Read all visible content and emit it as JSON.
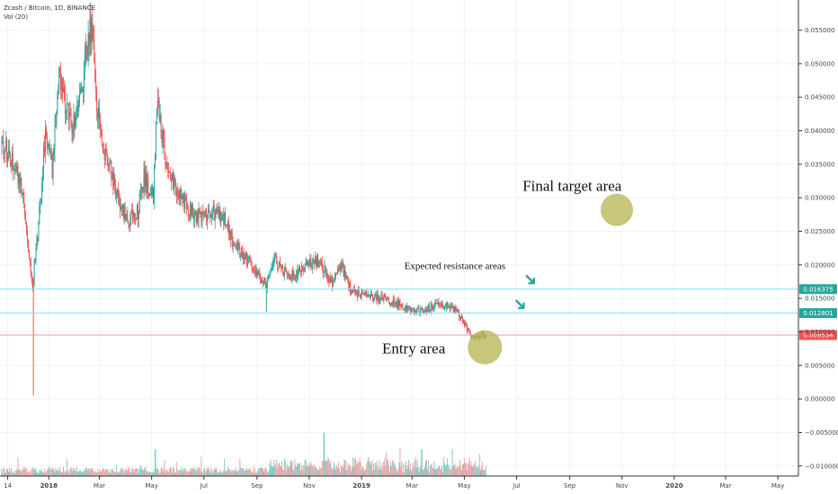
{
  "header": {
    "title": "Zcash / Bitcoin, 1D, BINANCE",
    "volume_label": "Vol (20)"
  },
  "colors": {
    "up": "#26a69a",
    "down": "#ef5350",
    "up_vol": "#80cbc4",
    "down_vol": "#f7a4a2",
    "resistance_line": "#80deea",
    "entry_line": "#ef9a9a",
    "circle": "#b5b34e",
    "arrow": "#26a69a",
    "grid": "#f0f3fa",
    "axis": "#333333"
  },
  "chart_data": {
    "type": "candlestick",
    "title": "Zcash / Bitcoin, 1D, BINANCE",
    "symbol": "Zcash / Bitcoin",
    "interval": "1D",
    "exchange": "BINANCE",
    "ylim": [
      -0.0115,
      0.0595
    ],
    "y_ticks": [
      -0.01,
      -0.005,
      0.0,
      0.005,
      0.01,
      0.015,
      0.02,
      0.025,
      0.03,
      0.035,
      0.04,
      0.045,
      0.05,
      0.055
    ],
    "y_tick_labels": [
      "−0.010000",
      "−0.005000",
      "0.000000",
      "0.005000",
      "0.010000",
      "0.015000",
      "0.020000",
      "0.025000",
      "0.030000",
      "0.035000",
      "0.040000",
      "0.045000",
      "0.050000",
      "0.055000"
    ],
    "x_range": [
      "2017-11-05",
      "2020-05-25"
    ],
    "x_ticks": [
      {
        "date": "2017-11-14",
        "label": "14",
        "bold": false
      },
      {
        "date": "2018-01-01",
        "label": "2018",
        "bold": true
      },
      {
        "date": "2018-03-01",
        "label": "Mar",
        "bold": false
      },
      {
        "date": "2018-05-01",
        "label": "May",
        "bold": false
      },
      {
        "date": "2018-07-01",
        "label": "Jul",
        "bold": false
      },
      {
        "date": "2018-09-01",
        "label": "Sep",
        "bold": false
      },
      {
        "date": "2018-11-01",
        "label": "Nov",
        "bold": false
      },
      {
        "date": "2019-01-01",
        "label": "2019",
        "bold": true
      },
      {
        "date": "2019-03-01",
        "label": "Mar",
        "bold": false
      },
      {
        "date": "2019-05-01",
        "label": "May",
        "bold": false
      },
      {
        "date": "2019-07-01",
        "label": "Jul",
        "bold": false
      },
      {
        "date": "2019-09-01",
        "label": "Sep",
        "bold": false
      },
      {
        "date": "2019-11-01",
        "label": "Nov",
        "bold": false
      },
      {
        "date": "2020-01-01",
        "label": "2020",
        "bold": true
      },
      {
        "date": "2020-03-01",
        "label": "Mar",
        "bold": false
      },
      {
        "date": "2020-05-01",
        "label": "May",
        "bold": false
      }
    ],
    "price_path": [
      {
        "date": "2017-11-07",
        "price": 0.038
      },
      {
        "date": "2017-11-18",
        "price": 0.036
      },
      {
        "date": "2017-11-28",
        "price": 0.033
      },
      {
        "date": "2017-12-05",
        "price": 0.027
      },
      {
        "date": "2017-12-10",
        "price": 0.02
      },
      {
        "date": "2017-12-13",
        "price": 0.017
      },
      {
        "date": "2017-12-20",
        "price": 0.026
      },
      {
        "date": "2017-12-28",
        "price": 0.04
      },
      {
        "date": "2018-01-05",
        "price": 0.034
      },
      {
        "date": "2018-01-12",
        "price": 0.048
      },
      {
        "date": "2018-01-20",
        "price": 0.044
      },
      {
        "date": "2018-01-28",
        "price": 0.04
      },
      {
        "date": "2018-02-05",
        "price": 0.043
      },
      {
        "date": "2018-02-15",
        "price": 0.053
      },
      {
        "date": "2018-02-20",
        "price": 0.056
      },
      {
        "date": "2018-02-26",
        "price": 0.044
      },
      {
        "date": "2018-03-05",
        "price": 0.037
      },
      {
        "date": "2018-03-15",
        "price": 0.034
      },
      {
        "date": "2018-03-25",
        "price": 0.029
      },
      {
        "date": "2018-04-05",
        "price": 0.027
      },
      {
        "date": "2018-04-15",
        "price": 0.028
      },
      {
        "date": "2018-04-22",
        "price": 0.033
      },
      {
        "date": "2018-04-28",
        "price": 0.031
      },
      {
        "date": "2018-05-03",
        "price": 0.03
      },
      {
        "date": "2018-05-07",
        "price": 0.044
      },
      {
        "date": "2018-05-12",
        "price": 0.04
      },
      {
        "date": "2018-05-20",
        "price": 0.034
      },
      {
        "date": "2018-06-01",
        "price": 0.031
      },
      {
        "date": "2018-06-15",
        "price": 0.028
      },
      {
        "date": "2018-06-30",
        "price": 0.027
      },
      {
        "date": "2018-07-10",
        "price": 0.028
      },
      {
        "date": "2018-07-25",
        "price": 0.027
      },
      {
        "date": "2018-08-05",
        "price": 0.023
      },
      {
        "date": "2018-08-15",
        "price": 0.0215
      },
      {
        "date": "2018-08-25",
        "price": 0.02
      },
      {
        "date": "2018-09-05",
        "price": 0.018
      },
      {
        "date": "2018-09-12",
        "price": 0.017
      },
      {
        "date": "2018-09-20",
        "price": 0.021
      },
      {
        "date": "2018-10-01",
        "price": 0.019
      },
      {
        "date": "2018-10-15",
        "price": 0.0185
      },
      {
        "date": "2018-10-28",
        "price": 0.02
      },
      {
        "date": "2018-11-10",
        "price": 0.0205
      },
      {
        "date": "2018-11-20",
        "price": 0.019
      },
      {
        "date": "2018-11-28",
        "price": 0.0175
      },
      {
        "date": "2018-12-08",
        "price": 0.02
      },
      {
        "date": "2018-12-20",
        "price": 0.016
      },
      {
        "date": "2019-01-05",
        "price": 0.0155
      },
      {
        "date": "2019-01-25",
        "price": 0.015
      },
      {
        "date": "2019-02-15",
        "price": 0.014
      },
      {
        "date": "2019-03-01",
        "price": 0.0135
      },
      {
        "date": "2019-03-15",
        "price": 0.0132
      },
      {
        "date": "2019-03-28",
        "price": 0.014
      },
      {
        "date": "2019-04-10",
        "price": 0.0142
      },
      {
        "date": "2019-04-20",
        "price": 0.0135
      },
      {
        "date": "2019-04-30",
        "price": 0.0115
      },
      {
        "date": "2019-05-10",
        "price": 0.009
      },
      {
        "date": "2019-05-18",
        "price": 0.0095
      },
      {
        "date": "2019-05-26",
        "price": 0.0096
      }
    ],
    "price_spikes": [
      {
        "date": "2017-12-14",
        "low": 0.0005,
        "high": 0.018
      },
      {
        "date": "2018-09-12",
        "low": 0.013,
        "high": 0.0175
      }
    ],
    "volume_spikes": [
      {
        "date": "2018-05-05",
        "value": 0.004
      },
      {
        "date": "2018-11-18",
        "value": 0.0065
      },
      {
        "date": "2019-03-12",
        "value": 0.004
      }
    ],
    "horizontal_lines": [
      {
        "value": 0.016375,
        "label": "0.016375",
        "kind": "resistance"
      },
      {
        "value": 0.012801,
        "label": "0.012801",
        "kind": "resistance"
      },
      {
        "value": 0.009534,
        "label": "0.009534",
        "kind": "current"
      }
    ],
    "annotations": [
      {
        "text": "Final target area",
        "date": "2019-07-08",
        "value": 0.031,
        "size": 17
      },
      {
        "text": "Expected resistance areas",
        "date": "2019-02-20",
        "value": 0.0194,
        "size": 11
      },
      {
        "text": "Entry area",
        "date": "2019-01-25",
        "value": 0.0068,
        "size": 17
      }
    ],
    "circles": [
      {
        "name": "final-target-circle",
        "date": "2019-10-26",
        "value": 0.0282,
        "r": 18
      },
      {
        "name": "entry-circle",
        "date": "2019-05-25",
        "value": 0.0077,
        "r": 19
      }
    ],
    "arrows": [
      {
        "name": "arrow-upper",
        "date": "2019-07-17",
        "value": 0.0178
      },
      {
        "name": "arrow-lower",
        "date": "2019-07-05",
        "value": 0.0141
      }
    ]
  }
}
